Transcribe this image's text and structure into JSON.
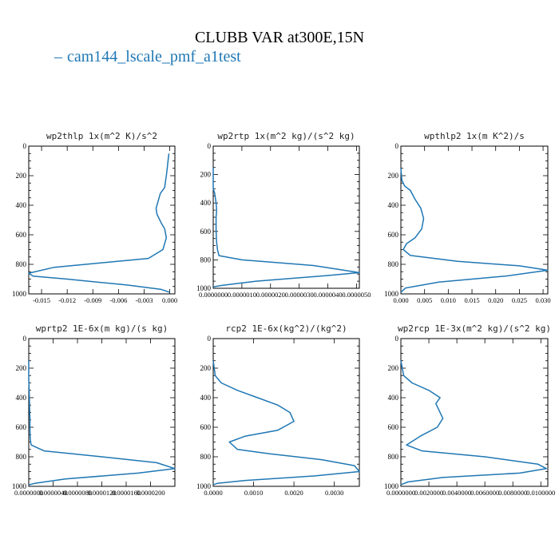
{
  "header": {
    "title": "CLUBB VAR at300E,15N",
    "legend_label": "cam144_lscale_pmf_a1test",
    "legend_color": "#1f77b4"
  },
  "chart_data": [
    {
      "type": "line",
      "title": "wp2thlp  1x(m^2 K)/s^2",
      "xlim": [
        -0.0165,
        0.0006
      ],
      "ylim": [
        0,
        1000
      ],
      "y_inverted": true,
      "x_ticks": [
        -0.015,
        -0.012,
        -0.009,
        -0.006,
        -0.003,
        0.0
      ],
      "x_tick_labels": [
        "-0.015",
        "-0.012",
        "-0.009",
        "-0.006",
        "-0.003",
        "0.000"
      ],
      "y_ticks": [
        0,
        200,
        400,
        600,
        800,
        1000
      ],
      "y_tick_labels": [
        "0",
        "200",
        "400",
        "600",
        "800",
        "1000"
      ],
      "series": [
        {
          "x": [
            -0.0001,
            -0.0002,
            -0.0003,
            -0.0004,
            -0.0005,
            -0.0006,
            -0.0011,
            -0.0014,
            -0.0016,
            -0.0015,
            -0.001,
            -0.0006,
            -0.0004,
            -0.0008,
            -0.0025,
            -0.008,
            -0.0135,
            -0.0165,
            -0.016,
            -0.012,
            -0.005,
            -0.001,
            0.0
          ],
          "y": [
            50,
            100,
            150,
            200,
            240,
            280,
            320,
            380,
            420,
            460,
            520,
            560,
            620,
            700,
            760,
            790,
            820,
            860,
            880,
            900,
            940,
            970,
            990
          ]
        }
      ]
    },
    {
      "type": "line",
      "title": "wp2rtp  1x(m^2 kg)/(s^2 kg)",
      "xlim": [
        0.0,
        5.1e-06
      ],
      "ylim": [
        0,
        1000
      ],
      "y_inverted": true,
      "x_ticks": [
        0.0,
        1e-06,
        2e-06,
        3e-06,
        4e-06,
        5e-06
      ],
      "x_tick_labels": [
        "0.0000000",
        "0.0000010",
        "0.0000020",
        "0.0000030",
        "0.0000040",
        "0.0000050"
      ],
      "y_ticks": [
        0,
        200,
        400,
        600,
        800,
        1000
      ],
      "y_tick_labels": [
        "0",
        "200",
        "400",
        "600",
        "800",
        "1000"
      ],
      "series": [
        {
          "x": [
            0.0,
            0.0,
            5e-08,
            1e-07,
            1.2e-07,
            1e-07,
            1e-07,
            1.2e-07,
            1.5e-07,
            2e-07,
            1e-06,
            3.5e-06,
            5.1e-06,
            4e-06,
            1.5e-06,
            3e-07,
            0.0
          ],
          "y": [
            150,
            300,
            330,
            400,
            450,
            500,
            600,
            680,
            730,
            770,
            800,
            840,
            890,
            910,
            950,
            980,
            990
          ]
        }
      ]
    },
    {
      "type": "line",
      "title": "wpthlp2  1x(m K^2)/s",
      "xlim": [
        0.0,
        0.031
      ],
      "ylim": [
        0,
        1000
      ],
      "y_inverted": true,
      "x_ticks": [
        0.0,
        0.005,
        0.01,
        0.015,
        0.02,
        0.025,
        0.03
      ],
      "x_tick_labels": [
        "0.000",
        "0.005",
        "0.010",
        "0.015",
        "0.020",
        "0.025",
        "0.030"
      ],
      "y_ticks": [
        0,
        200,
        400,
        600,
        800,
        1000
      ],
      "y_tick_labels": [
        "0",
        "200",
        "400",
        "600",
        "800",
        "1000"
      ],
      "series": [
        {
          "x": [
            0.0,
            0.0002,
            0.0008,
            0.002,
            0.003,
            0.0042,
            0.0048,
            0.0044,
            0.003,
            0.0012,
            0.0005,
            0.002,
            0.012,
            0.025,
            0.031,
            0.022,
            0.008,
            0.001,
            0.0
          ],
          "y": [
            150,
            230,
            270,
            300,
            360,
            420,
            490,
            560,
            620,
            660,
            700,
            740,
            780,
            810,
            840,
            880,
            920,
            960,
            990
          ]
        }
      ]
    },
    {
      "type": "line",
      "title": "wprtp2  1E-6x(m kg)/(s kg)",
      "xlim": [
        0.0,
        2.4e-05
      ],
      "ylim": [
        0,
        1000
      ],
      "y_inverted": true,
      "x_ticks": [
        0.0,
        4e-06,
        8e-06,
        1.2e-05,
        1.6e-05,
        2e-05
      ],
      "x_tick_labels": [
        "0.0000000",
        "0.0000040",
        "0.0000080",
        "0.0000120",
        "0.0000160",
        "0.0000200"
      ],
      "y_ticks": [
        0,
        200,
        400,
        600,
        800,
        1000
      ],
      "y_tick_labels": [
        "0",
        "200",
        "400",
        "600",
        "800",
        "1000"
      ],
      "series": [
        {
          "x": [
            0.0,
            0.0,
            5e-08,
            1e-07,
            1.5e-07,
            2e-07,
            2e-07,
            2.5e-07,
            4e-07,
            2.5e-06,
            1.2e-05,
            2.1e-05,
            2.4e-05,
            1.8e-05,
            6e-06,
            1e-06,
            0.0
          ],
          "y": [
            150,
            280,
            330,
            400,
            480,
            550,
            620,
            680,
            720,
            760,
            800,
            840,
            880,
            910,
            950,
            980,
            990
          ]
        }
      ]
    },
    {
      "type": "line",
      "title": "rcp2  1E-6x(kg^2)/(kg^2)",
      "xlim": [
        0.0,
        0.00362
      ],
      "ylim": [
        0,
        1000
      ],
      "y_inverted": true,
      "x_ticks": [
        0.0,
        0.001,
        0.002,
        0.003
      ],
      "x_tick_labels": [
        "0.0000",
        "0.0010",
        "0.0020",
        "0.0030"
      ],
      "y_ticks": [
        0,
        200,
        400,
        600,
        800,
        1000
      ],
      "y_tick_labels": [
        "0",
        "200",
        "400",
        "600",
        "800",
        "1000"
      ],
      "series": [
        {
          "x": [
            0.0,
            5e-05,
            0.0002,
            0.0006,
            0.0011,
            0.0016,
            0.0019,
            0.002,
            0.0016,
            0.0008,
            0.0004,
            0.0006,
            0.0014,
            0.0027,
            0.0035,
            0.00362,
            0.0025,
            0.0008,
            0.0001,
            0.0
          ],
          "y": [
            150,
            250,
            300,
            350,
            400,
            450,
            500,
            560,
            620,
            660,
            700,
            750,
            780,
            820,
            860,
            900,
            930,
            960,
            980,
            990
          ]
        }
      ]
    },
    {
      "type": "line",
      "title": "wp2rcp  1E-3x(m^2 kg)/(s^2 kg)",
      "xlim": [
        0.0,
        0.0105
      ],
      "ylim": [
        0,
        1000
      ],
      "y_inverted": true,
      "x_ticks": [
        0.0,
        0.002,
        0.004,
        0.006,
        0.008,
        0.01
      ],
      "x_tick_labels": [
        "0.0000000",
        "0.0020000",
        "0.0040000",
        "0.0060000",
        "0.0080000",
        "0.0100000"
      ],
      "y_ticks": [
        0,
        200,
        400,
        600,
        800,
        1000
      ],
      "y_tick_labels": [
        "0",
        "200",
        "400",
        "600",
        "800",
        "1000"
      ],
      "series": [
        {
          "x": [
            0.0,
            0.0002,
            0.0008,
            0.002,
            0.0028,
            0.0025,
            0.0027,
            0.003,
            0.0026,
            0.0014,
            0.0004,
            0.0015,
            0.006,
            0.0098,
            0.0104,
            0.0085,
            0.003,
            0.0005,
            0.0
          ],
          "y": [
            150,
            250,
            300,
            350,
            400,
            440,
            480,
            540,
            600,
            660,
            720,
            760,
            800,
            850,
            880,
            910,
            940,
            970,
            990
          ]
        }
      ]
    }
  ]
}
